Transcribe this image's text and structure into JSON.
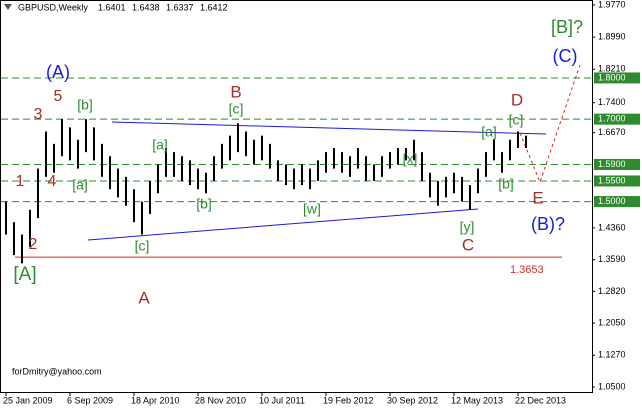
{
  "chart_data": {
    "type": "range-bar",
    "symbol": "GBPUSD,Weekly",
    "ohlc_header": [
      1.6401,
      1.6438,
      1.6337,
      1.6412
    ],
    "watermark": "forDmitry@yahoo.com",
    "categories": [
      "25 Jan 2009",
      null,
      null,
      null,
      null,
      null,
      null,
      null,
      "6 Sep 2009",
      null,
      null,
      null,
      null,
      null,
      null,
      null,
      "18 Apr 2010",
      null,
      null,
      null,
      null,
      null,
      null,
      null,
      "28 Nov 2010",
      null,
      null,
      null,
      null,
      null,
      null,
      null,
      "10 Jul 2011",
      null,
      null,
      null,
      null,
      null,
      null,
      null,
      "19 Feb 2012",
      null,
      null,
      null,
      null,
      null,
      null,
      null,
      "30 Sep 2012",
      null,
      null,
      null,
      null,
      null,
      null,
      null,
      "12 May 2013",
      null,
      null,
      null,
      null,
      null,
      null,
      null,
      "22 Dec 2013",
      null
    ],
    "high": [
      1.5,
      1.45,
      1.42,
      1.48,
      1.58,
      1.67,
      1.64,
      1.7,
      1.68,
      1.65,
      1.7,
      1.68,
      1.64,
      1.61,
      1.58,
      1.56,
      1.53,
      1.5,
      1.55,
      1.59,
      1.63,
      1.62,
      1.61,
      1.6,
      1.58,
      1.57,
      1.61,
      1.64,
      1.66,
      1.69,
      1.67,
      1.65,
      1.66,
      1.64,
      1.6,
      1.59,
      1.58,
      1.59,
      1.58,
      1.6,
      1.62,
      1.63,
      1.62,
      1.61,
      1.63,
      1.61,
      1.59,
      1.61,
      1.62,
      1.63,
      1.63,
      1.65,
      1.62,
      1.57,
      1.55,
      1.56,
      1.57,
      1.56,
      1.54,
      1.58,
      1.62,
      1.65,
      1.62,
      1.65,
      1.67,
      1.66
    ],
    "low": [
      1.42,
      1.37,
      1.35,
      1.39,
      1.46,
      1.56,
      1.57,
      1.61,
      1.6,
      1.58,
      1.62,
      1.6,
      1.56,
      1.53,
      1.51,
      1.49,
      1.45,
      1.42,
      1.47,
      1.52,
      1.56,
      1.56,
      1.55,
      1.54,
      1.53,
      1.52,
      1.55,
      1.58,
      1.6,
      1.62,
      1.61,
      1.59,
      1.6,
      1.58,
      1.55,
      1.54,
      1.53,
      1.54,
      1.53,
      1.55,
      1.57,
      1.58,
      1.57,
      1.56,
      1.58,
      1.55,
      1.55,
      1.56,
      1.58,
      1.59,
      1.6,
      1.6,
      1.55,
      1.51,
      1.49,
      1.51,
      1.52,
      1.5,
      1.48,
      1.52,
      1.56,
      1.6,
      1.57,
      1.6,
      1.63,
      1.63
    ],
    "bar_color": "#000000",
    "ylim": [
      1.05,
      1.977
    ],
    "yticks": [
      {
        "value": 1.977,
        "label": "1.9770"
      },
      {
        "value": 1.899,
        "label": "1.8990"
      },
      {
        "value": 1.821,
        "label": "1.8210"
      },
      {
        "value": 1.74,
        "label": "1.7400"
      },
      {
        "value": 1.667,
        "label": "1.6670"
      },
      {
        "value": 1.436,
        "label": "1.4360"
      },
      {
        "value": 1.359,
        "label": "1.3590"
      },
      {
        "value": 1.282,
        "label": "1.2820"
      },
      {
        "value": 1.205,
        "label": "1.2050"
      },
      {
        "value": 1.127,
        "label": "1.1270"
      },
      {
        "value": 1.05,
        "label": "1.0500"
      }
    ],
    "levels": [
      {
        "value": 1.8,
        "label": "1.8000"
      },
      {
        "value": 1.7,
        "label": "1.7000"
      },
      {
        "value": 1.59,
        "label": "1.5900"
      },
      {
        "value": 1.55,
        "label": "1.5500"
      },
      {
        "value": 1.5,
        "label": "1.5000"
      }
    ],
    "level_color": "#2e8b2e",
    "support_line": {
      "value": 1.3653,
      "color": "#d42a2a"
    },
    "annotations": [
      {
        "text": "[B]?",
        "color": "#2e8b2e"
      },
      {
        "text": "(C)",
        "color": "#1a1ad8"
      },
      {
        "text": "(A)",
        "color": "#1a1ad8"
      },
      {
        "text": "5",
        "color": "#a0302a"
      },
      {
        "text": "3",
        "color": "#a0302a"
      },
      {
        "text": "[b]",
        "color": "#2e8b2e"
      },
      {
        "text": "B",
        "color": "#a0302a"
      },
      {
        "text": "[c]",
        "color": "#2e8b2e"
      },
      {
        "text": "D",
        "color": "#a0302a"
      },
      {
        "text": "[c]",
        "color": "#2e8b2e"
      },
      {
        "text": "[a]",
        "color": "#2e8b2e"
      },
      {
        "text": "[x]",
        "color": "#2e8b2e"
      },
      {
        "text": "[a]",
        "color": "#2e8b2e"
      },
      {
        "text": "1",
        "color": "#a0302a"
      },
      {
        "text": "4",
        "color": "#a0302a"
      },
      {
        "text": "[a]",
        "color": "#2e8b2e"
      },
      {
        "text": "[b]",
        "color": "#2e8b2e"
      },
      {
        "text": "E",
        "color": "#a0302a"
      },
      {
        "text": "[b]",
        "color": "#2e8b2e"
      },
      {
        "text": "[w]",
        "color": "#2e8b2e"
      },
      {
        "text": "(B)?",
        "color": "#1a1ad8"
      },
      {
        "text": "[y]",
        "color": "#2e8b2e"
      },
      {
        "text": "2",
        "color": "#a0302a"
      },
      {
        "text": "[c]",
        "color": "#2e8b2e"
      },
      {
        "text": "C",
        "color": "#a0302a"
      },
      {
        "text": "[A]",
        "color": "#2e8b2e"
      },
      {
        "text": "A",
        "color": "#a0302a"
      }
    ]
  }
}
